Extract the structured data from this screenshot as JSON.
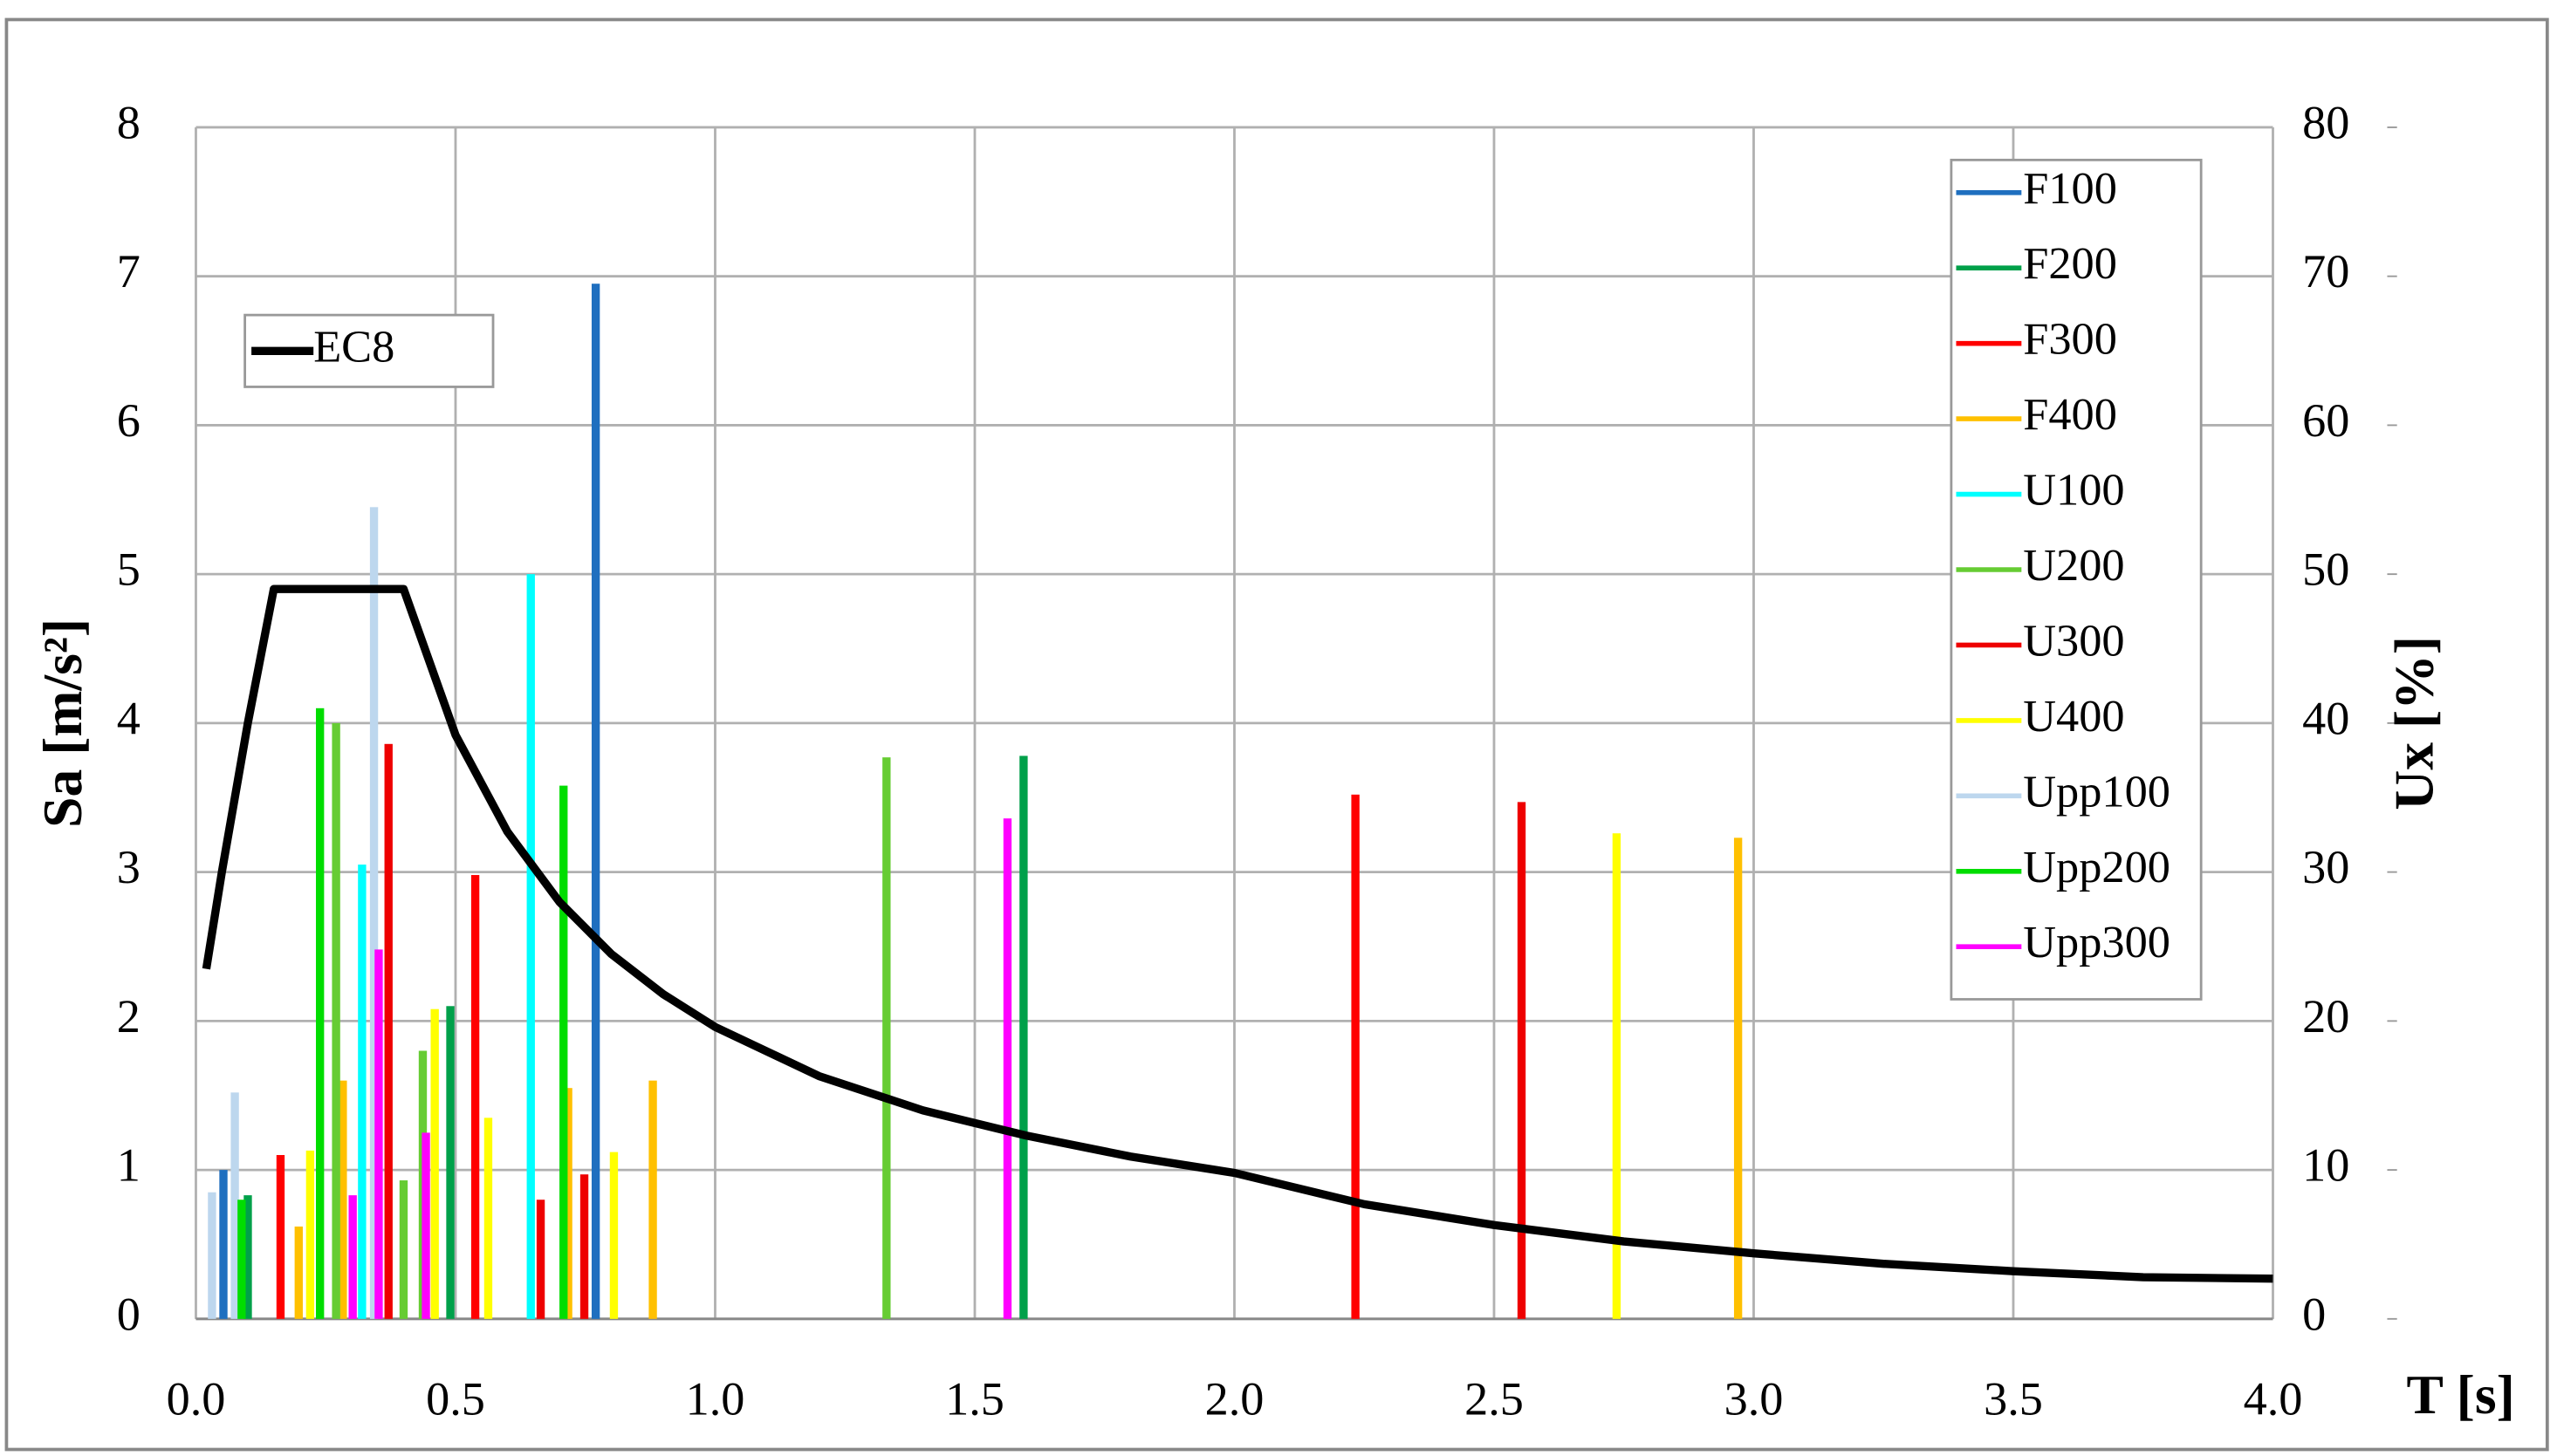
{
  "chart_data": {
    "type": "line",
    "xlabel": "T [s]",
    "ylabel": "Sa [m/s²]",
    "y2label": "Ux [%]",
    "xlim": [
      0,
      4
    ],
    "ylim": [
      0,
      8
    ],
    "y2lim": [
      0,
      80
    ],
    "xticks": [
      {
        "value": 0,
        "label": "0.0"
      },
      0.5,
      {
        "value": 1,
        "label": "1.0"
      },
      1.5,
      {
        "value": 2,
        "label": "2.0"
      },
      2.5,
      {
        "value": 3,
        "label": "3.0"
      },
      3.5,
      {
        "value": 4,
        "label": "4.0"
      }
    ],
    "yticks": [
      0,
      1,
      2,
      3,
      4,
      5,
      6,
      7,
      8
    ],
    "y2ticks": [
      0,
      10,
      20,
      30,
      40,
      50,
      60,
      70,
      80
    ],
    "grid": true,
    "series": [
      {
        "name": "EC8",
        "color": "#000000",
        "axis": "y",
        "style": "line",
        "x": [
          0.02,
          0.05,
          0.1,
          0.15,
          0.2,
          0.3,
          0.4,
          0.5,
          0.6,
          0.7,
          0.8,
          0.9,
          1.0,
          1.2,
          1.4,
          1.6,
          1.8,
          2.0,
          2.25,
          2.5,
          2.75,
          3.0,
          3.25,
          3.5,
          3.75,
          4.0
        ],
        "values": [
          2.35,
          3.0,
          4.0,
          4.9,
          4.9,
          4.9,
          4.9,
          3.92,
          3.27,
          2.8,
          2.45,
          2.18,
          1.96,
          1.63,
          1.4,
          1.23,
          1.09,
          0.98,
          0.77,
          0.63,
          0.52,
          0.44,
          0.37,
          0.32,
          0.28,
          0.27
        ]
      },
      {
        "name": "F100",
        "color": "#1f6fbf",
        "axis": "y2",
        "style": "bar",
        "x": [
          0.053,
          0.77
        ],
        "values": [
          10,
          69.5
        ]
      },
      {
        "name": "F200",
        "color": "#00a04a",
        "axis": "y2",
        "style": "bar",
        "x": [
          0.1,
          0.49,
          1.594
        ],
        "values": [
          8.3,
          21,
          37.8
        ]
      },
      {
        "name": "F300",
        "color": "#ff0000",
        "axis": "y2",
        "style": "bar",
        "x": [
          0.163,
          0.538,
          2.233
        ],
        "values": [
          11,
          29.8,
          35.2
        ]
      },
      {
        "name": "F400",
        "color": "#ffc000",
        "axis": "y2",
        "style": "bar",
        "x": [
          0.198,
          0.283,
          0.717,
          0.88,
          2.97
        ],
        "values": [
          6.2,
          16,
          15.5,
          16,
          32.3
        ]
      },
      {
        "name": "U100",
        "color": "#00ffff",
        "axis": "y2",
        "style": "bar",
        "x": [
          0.32,
          0.645
        ],
        "values": [
          30.5,
          50
        ]
      },
      {
        "name": "U200",
        "color": "#66cc33",
        "axis": "y2",
        "style": "bar",
        "x": [
          0.27,
          0.4,
          0.437,
          1.33
        ],
        "values": [
          40,
          9.3,
          18,
          37.7
        ]
      },
      {
        "name": "U300",
        "color": "#ee0000",
        "axis": "y2",
        "style": "bar",
        "x": [
          0.371,
          0.664,
          0.748,
          2.553
        ],
        "values": [
          38.6,
          8,
          9.7,
          34.7
        ]
      },
      {
        "name": "U400",
        "color": "#ffff00",
        "axis": "y2",
        "style": "bar",
        "x": [
          0.22,
          0.46,
          0.563,
          0.805,
          2.736
        ],
        "values": [
          11.3,
          20.8,
          13.5,
          11.2,
          32.6
        ]
      },
      {
        "name": "Upp100",
        "color": "#bdd7ee",
        "axis": "y2",
        "style": "bar",
        "x": [
          0.031,
          0.075,
          0.343
        ],
        "values": [
          8.5,
          15.2,
          54.5
        ]
      },
      {
        "name": "Upp200",
        "color": "#00dd00",
        "axis": "y2",
        "style": "bar",
        "x": [
          0.088,
          0.239,
          0.708
        ],
        "values": [
          8,
          41,
          35.8
        ]
      },
      {
        "name": "Upp300",
        "color": "#ff00ff",
        "axis": "y2",
        "style": "bar",
        "x": [
          0.302,
          0.352,
          0.443,
          1.563
        ],
        "values": [
          8.3,
          24.8,
          12.5,
          33.6
        ]
      }
    ]
  }
}
